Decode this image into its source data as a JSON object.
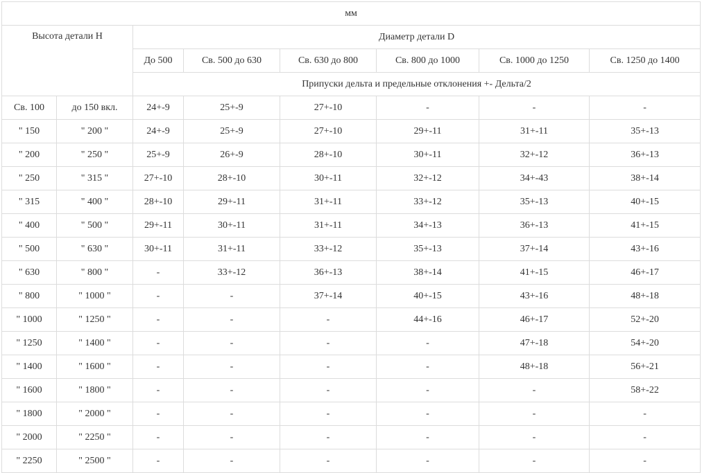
{
  "table": {
    "unit": "мм",
    "height_header": "Высота детали Н",
    "diameter_header": "Диаметр детали D",
    "diameter_columns": [
      "До 500",
      "Св. 500 до 630",
      "Св. 630 до 800",
      "Св. 800 до 1000",
      "Св. 1000 до 1250",
      "Св. 1250 до 1400"
    ],
    "allowance_header": "Припуски дельта и предельные отклонения +- Дельта/2",
    "rows": [
      {
        "from": "Св. 100",
        "to": "до 150 вкл.",
        "values": [
          "24+-9",
          "25+-9",
          "27+-10",
          "-",
          "-",
          "-"
        ]
      },
      {
        "from": "\" 150",
        "to": "\" 200 \"",
        "values": [
          "24+-9",
          "25+-9",
          "27+-10",
          "29+-11",
          "31+-11",
          "35+-13"
        ]
      },
      {
        "from": "\" 200",
        "to": "\" 250 \"",
        "values": [
          "25+-9",
          "26+-9",
          "28+-10",
          "30+-11",
          "32+-12",
          "36+-13"
        ]
      },
      {
        "from": "\" 250",
        "to": "\" 315 \"",
        "values": [
          "27+-10",
          "28+-10",
          "30+-11",
          "32+-12",
          "34+-43",
          "38+-14"
        ]
      },
      {
        "from": "\" 315",
        "to": "\" 400 \"",
        "values": [
          "28+-10",
          "29+-11",
          "31+-11",
          "33+-12",
          "35+-13",
          "40+-15"
        ]
      },
      {
        "from": "\" 400",
        "to": "\" 500 \"",
        "values": [
          "29+-11",
          "30+-11",
          "31+-11",
          "34+-13",
          "36+-13",
          "41+-15"
        ]
      },
      {
        "from": "\" 500",
        "to": "\" 630 \"",
        "values": [
          "30+-11",
          "31+-11",
          "33+-12",
          "35+-13",
          "37+-14",
          "43+-16"
        ]
      },
      {
        "from": "\" 630",
        "to": "\" 800 \"",
        "values": [
          "-",
          "33+-12",
          "36+-13",
          "38+-14",
          "41+-15",
          "46+-17"
        ]
      },
      {
        "from": "\" 800",
        "to": "\" 1000 \"",
        "values": [
          "-",
          "-",
          "37+-14",
          "40+-15",
          "43+-16",
          "48+-18"
        ]
      },
      {
        "from": "\" 1000",
        "to": "\" 1250 \"",
        "values": [
          "-",
          "-",
          "-",
          "44+-16",
          "46+-17",
          "52+-20"
        ]
      },
      {
        "from": "\" 1250",
        "to": "\" 1400 \"",
        "values": [
          "-",
          "-",
          "-",
          "-",
          "47+-18",
          "54+-20"
        ]
      },
      {
        "from": "\" 1400",
        "to": "\" 1600 \"",
        "values": [
          "-",
          "-",
          "-",
          "-",
          "48+-18",
          "56+-21"
        ]
      },
      {
        "from": "\" 1600",
        "to": "\" 1800 \"",
        "values": [
          "-",
          "-",
          "-",
          "-",
          "-",
          "58+-22"
        ]
      },
      {
        "from": "\" 1800",
        "to": "\" 2000 \"",
        "values": [
          "-",
          "-",
          "-",
          "-",
          "-",
          "-"
        ]
      },
      {
        "from": "\" 2000",
        "to": "\" 2250 \"",
        "values": [
          "-",
          "-",
          "-",
          "-",
          "-",
          "-"
        ]
      },
      {
        "from": "\" 2250",
        "to": "\" 2500 \"",
        "values": [
          "-",
          "-",
          "-",
          "-",
          "-",
          "-"
        ]
      }
    ]
  }
}
